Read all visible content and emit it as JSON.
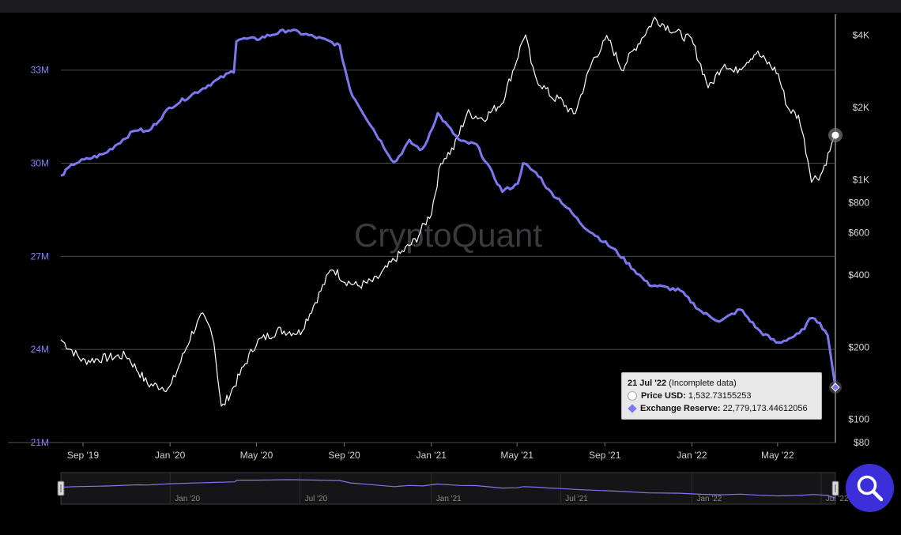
{
  "watermark": "CryptoQuant",
  "chart_data": {
    "type": "line",
    "x_range": [
      "2019-08-01",
      "2022-07-21"
    ],
    "x_ticks": [
      "Sep '19",
      "Jan '20",
      "May '20",
      "Sep '20",
      "Jan '21",
      "May '21",
      "Sep '21",
      "Jan '22",
      "May '22"
    ],
    "y_left": {
      "ticks": [
        "33M",
        "30M",
        "27M",
        "24M",
        "21M"
      ],
      "ylim": [
        21000000,
        34800000
      ]
    },
    "y_right": {
      "scale": "log",
      "ticks": [
        "$4K",
        "$2K",
        "$1K",
        "$800",
        "$600",
        "$400",
        "$200",
        "$100",
        "$80"
      ],
      "ylim": [
        80,
        4900
      ]
    },
    "grid": "horizontal",
    "series": [
      {
        "name": "Price USD",
        "color": "#ffffff",
        "axis": "right",
        "points": [
          [
            "2019-08-01",
            215
          ],
          [
            "2019-09-01",
            175
          ],
          [
            "2019-10-01",
            180
          ],
          [
            "2019-11-01",
            185
          ],
          [
            "2019-12-01",
            140
          ],
          [
            "2020-01-01",
            135
          ],
          [
            "2020-02-01",
            230
          ],
          [
            "2020-02-15",
            270
          ],
          [
            "2020-03-01",
            230
          ],
          [
            "2020-03-13",
            110
          ],
          [
            "2020-04-01",
            140
          ],
          [
            "2020-04-15",
            170
          ],
          [
            "2020-05-01",
            210
          ],
          [
            "2020-06-01",
            235
          ],
          [
            "2020-07-01",
            230
          ],
          [
            "2020-07-25",
            320
          ],
          [
            "2020-08-15",
            430
          ],
          [
            "2020-09-01",
            380
          ],
          [
            "2020-09-20",
            360
          ],
          [
            "2020-10-15",
            380
          ],
          [
            "2020-11-15",
            480
          ],
          [
            "2020-12-10",
            560
          ],
          [
            "2021-01-01",
            730
          ],
          [
            "2021-01-15",
            1200
          ],
          [
            "2021-02-01",
            1350
          ],
          [
            "2021-02-20",
            1900
          ],
          [
            "2021-03-15",
            1800
          ],
          [
            "2021-04-10",
            2100
          ],
          [
            "2021-05-01",
            3200
          ],
          [
            "2021-05-12",
            4100
          ],
          [
            "2021-05-25",
            2700
          ],
          [
            "2021-06-20",
            2200
          ],
          [
            "2021-07-01",
            2150
          ],
          [
            "2021-07-20",
            1850
          ],
          [
            "2021-08-15",
            3150
          ],
          [
            "2021-09-05",
            3900
          ],
          [
            "2021-09-25",
            2900
          ],
          [
            "2021-10-15",
            3600
          ],
          [
            "2021-11-10",
            4700
          ],
          [
            "2021-12-05",
            4200
          ],
          [
            "2022-01-01",
            3800
          ],
          [
            "2022-01-25",
            2400
          ],
          [
            "2022-02-15",
            3100
          ],
          [
            "2022-03-01",
            2800
          ],
          [
            "2022-04-01",
            3400
          ],
          [
            "2022-05-01",
            2800
          ],
          [
            "2022-05-15",
            2000
          ],
          [
            "2022-06-01",
            1800
          ],
          [
            "2022-06-18",
            1000
          ],
          [
            "2022-07-01",
            1050
          ],
          [
            "2022-07-21",
            1532.73
          ]
        ]
      },
      {
        "name": "Exchange Reserve",
        "color": "#7b78f2",
        "axis": "left",
        "points": [
          [
            "2019-08-01",
            29600000
          ],
          [
            "2019-08-20",
            30000000
          ],
          [
            "2019-10-01",
            30300000
          ],
          [
            "2019-11-15",
            31100000
          ],
          [
            "2019-12-01",
            31000000
          ],
          [
            "2020-01-01",
            31800000
          ],
          [
            "2020-03-01",
            32600000
          ],
          [
            "2020-04-01",
            33000000
          ],
          [
            "2020-04-03",
            34000000
          ],
          [
            "2020-05-01",
            34000000
          ],
          [
            "2020-06-15",
            34300000
          ],
          [
            "2020-08-01",
            34000000
          ],
          [
            "2020-08-25",
            33800000
          ],
          [
            "2020-09-10",
            32300000
          ],
          [
            "2020-10-01",
            31500000
          ],
          [
            "2020-11-10",
            30000000
          ],
          [
            "2020-12-01",
            30700000
          ],
          [
            "2020-12-20",
            30400000
          ],
          [
            "2021-01-10",
            31600000
          ],
          [
            "2021-02-10",
            30700000
          ],
          [
            "2021-03-05",
            30600000
          ],
          [
            "2021-04-10",
            29100000
          ],
          [
            "2021-05-01",
            29300000
          ],
          [
            "2021-05-10",
            30000000
          ],
          [
            "2021-06-01",
            29600000
          ],
          [
            "2021-06-15",
            29100000
          ],
          [
            "2021-07-01",
            28800000
          ],
          [
            "2021-08-01",
            28000000
          ],
          [
            "2021-09-15",
            27200000
          ],
          [
            "2021-11-01",
            26100000
          ],
          [
            "2021-12-15",
            25900000
          ],
          [
            "2022-01-15",
            25200000
          ],
          [
            "2022-02-10",
            24900000
          ],
          [
            "2022-03-10",
            25300000
          ],
          [
            "2022-04-05",
            24600000
          ],
          [
            "2022-05-01",
            24200000
          ],
          [
            "2022-06-01",
            24500000
          ],
          [
            "2022-06-20",
            25100000
          ],
          [
            "2022-07-10",
            24500000
          ],
          [
            "2022-07-21",
            22779173.44612056
          ]
        ]
      }
    ],
    "tooltip": {
      "date_label": "21 Jul '22",
      "note": "(Incomplete data)",
      "price_label": "Price USD:",
      "price_value": "1,532.73155253",
      "reserve_label": "Exchange Reserve:",
      "reserve_value": "22,779,173.44612056"
    },
    "navigator": {
      "ticks": [
        "Jan '20",
        "Jul '20",
        "Jan '21",
        "Jul '21",
        "Jan '22",
        "Jul '22"
      ]
    }
  }
}
